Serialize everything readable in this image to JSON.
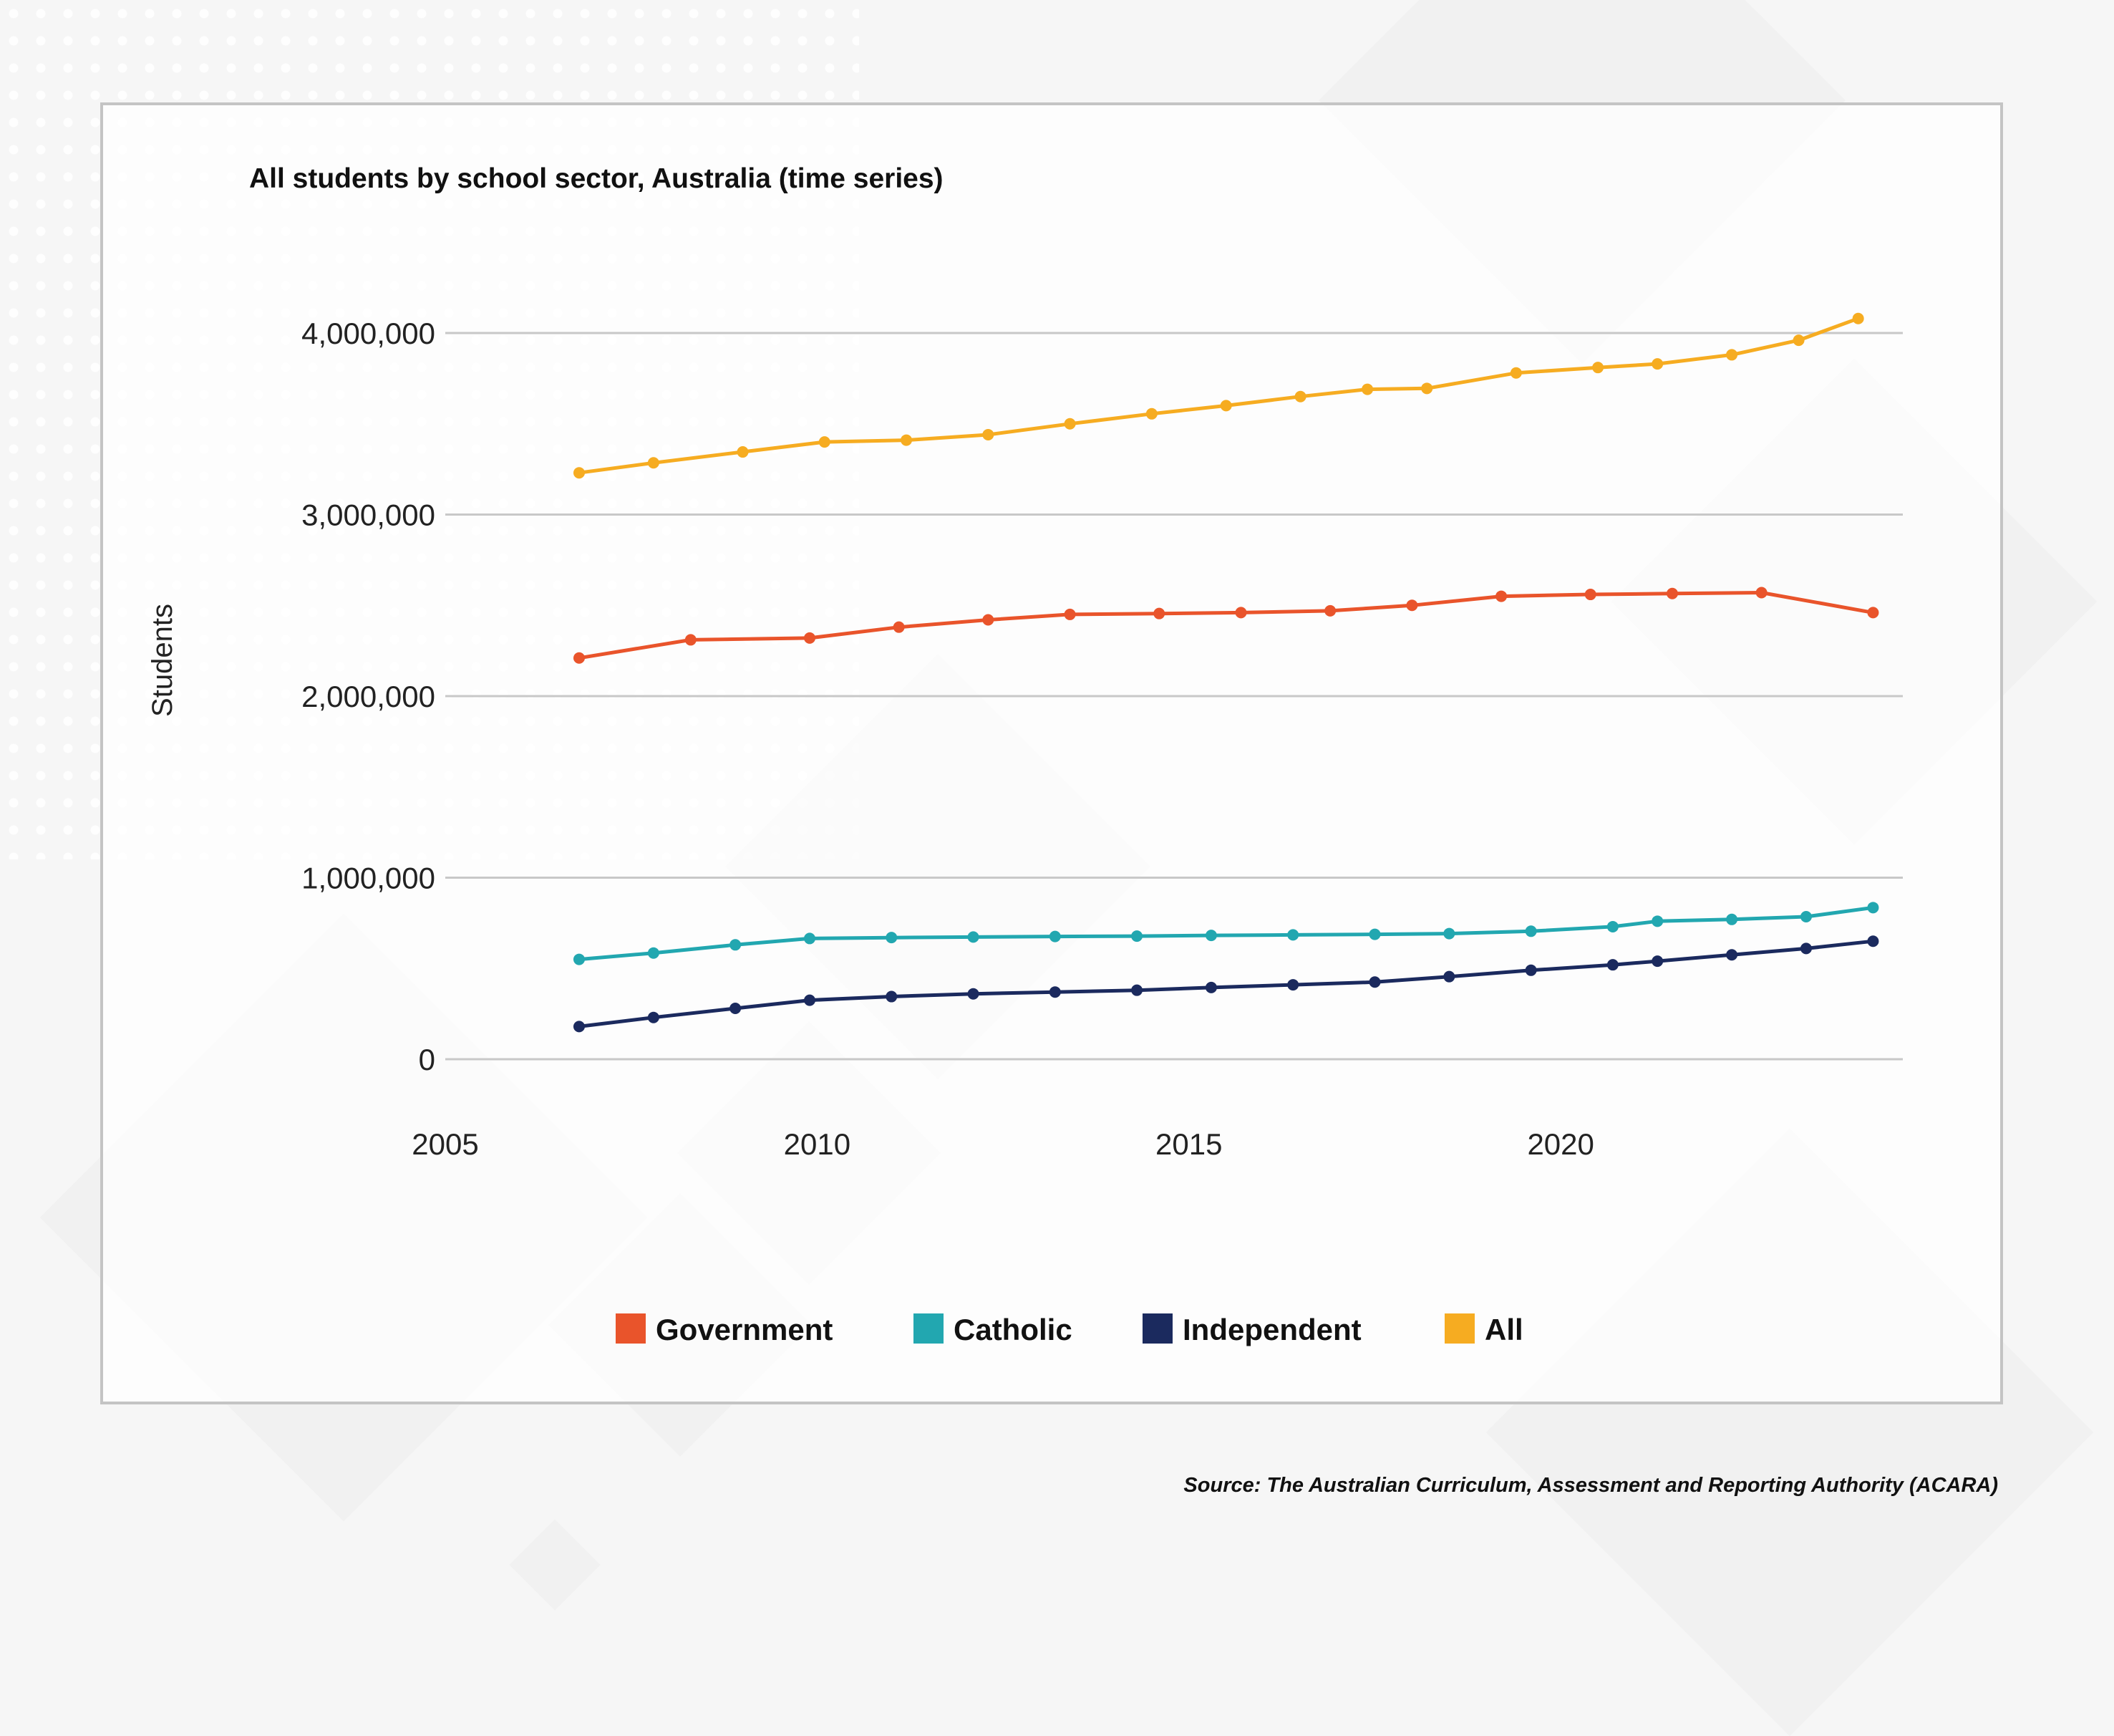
{
  "chart_data": {
    "type": "line",
    "title": "All students by school sector, Australia (time series)",
    "xlabel": "",
    "ylabel": "Students",
    "xlim": [
      2005,
      2024.6
    ],
    "ylim": [
      0,
      4000000
    ],
    "x_ticks": [
      "2005",
      "2010",
      "2015",
      "2020"
    ],
    "y_ticks": [
      "0",
      "1,000,000",
      "2,000,000",
      "3,000,000",
      "4,000,000"
    ],
    "grid": true,
    "legend_position": "bottom",
    "series": [
      {
        "name": "Government",
        "color": "#e9542b",
        "x": [
          2006.8,
          2008.3,
          2009.9,
          2011.1,
          2012.3,
          2013.4,
          2014.6,
          2015.7,
          2016.9,
          2018.0,
          2019.2,
          2020.4,
          2021.5,
          2022.7,
          2024.2
        ],
        "values": [
          2210000,
          2310000,
          2320000,
          2380000,
          2420000,
          2450000,
          2455000,
          2460000,
          2470000,
          2500000,
          2550000,
          2560000,
          2565000,
          2570000,
          2460000
        ]
      },
      {
        "name": "Catholic",
        "color": "#22a7b0",
        "x": [
          2006.8,
          2007.8,
          2008.9,
          2009.9,
          2011.0,
          2012.1,
          2013.2,
          2014.3,
          2015.3,
          2016.4,
          2017.5,
          2018.5,
          2019.6,
          2020.7,
          2021.3,
          2022.3,
          2023.3,
          2024.2
        ],
        "values": [
          550000,
          585000,
          630000,
          665000,
          670000,
          673000,
          676000,
          678000,
          682000,
          685000,
          688000,
          692000,
          705000,
          730000,
          760000,
          770000,
          785000,
          835000
        ]
      },
      {
        "name": "Independent",
        "color": "#1b2a5e",
        "x": [
          2006.8,
          2007.8,
          2008.9,
          2009.9,
          2011.0,
          2012.1,
          2013.2,
          2014.3,
          2015.3,
          2016.4,
          2017.5,
          2018.5,
          2019.6,
          2020.7,
          2021.3,
          2022.3,
          2023.3,
          2024.2
        ],
        "values": [
          180000,
          230000,
          280000,
          325000,
          345000,
          360000,
          370000,
          380000,
          395000,
          410000,
          425000,
          455000,
          490000,
          520000,
          540000,
          575000,
          610000,
          650000
        ]
      },
      {
        "name": "All",
        "color": "#f6ac21",
        "x": [
          2006.8,
          2007.8,
          2009.0,
          2010.1,
          2011.2,
          2012.3,
          2013.4,
          2014.5,
          2015.5,
          2016.5,
          2017.4,
          2018.2,
          2019.4,
          2020.5,
          2021.3,
          2022.3,
          2023.2,
          2024.0
        ],
        "values": [
          3230000,
          3285000,
          3345000,
          3400000,
          3410000,
          3440000,
          3500000,
          3555000,
          3600000,
          3650000,
          3690000,
          3695000,
          3780000,
          3810000,
          3830000,
          3880000,
          3960000,
          4080000
        ]
      }
    ],
    "source": "Source: The Australian Curriculum, Assessment and Reporting Authority (ACARA)"
  }
}
